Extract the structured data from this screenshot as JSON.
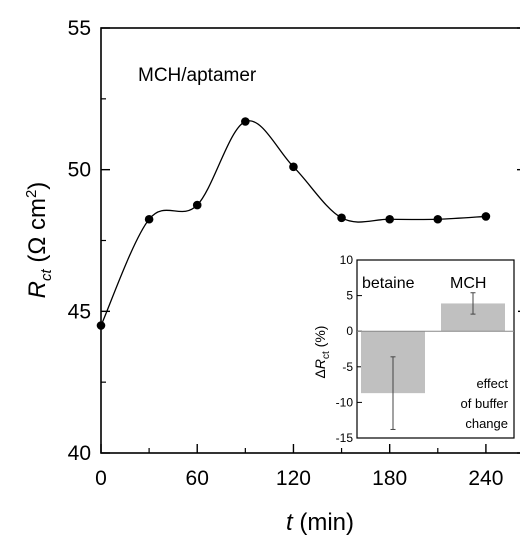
{
  "chart_data": [
    {
      "type": "line",
      "annotation": "MCH/aptamer",
      "xlabel": {
        "italic": "t",
        "rest": " (min)"
      },
      "ylabel": {
        "italic": "R",
        "sub": "ct",
        "rest": " (Ω cm",
        "sup": "2",
        "close": ")"
      },
      "xlim": [
        0,
        265
      ],
      "ylim": [
        40,
        55
      ],
      "xticks": [
        0,
        60,
        120,
        180,
        240
      ],
      "yticks": [
        40,
        45,
        50,
        55
      ],
      "x": [
        0,
        30,
        60,
        90,
        120,
        150,
        180,
        210,
        240
      ],
      "y": [
        44.5,
        48.25,
        48.75,
        51.7,
        50.1,
        48.3,
        48.25,
        48.25,
        48.35
      ],
      "grid": false,
      "marker_color": "#000000",
      "line_color": "#000000"
    },
    {
      "type": "bar",
      "categories": [
        "betaine",
        "MCH"
      ],
      "values": [
        -8.7,
        3.9
      ],
      "errors": [
        5.1,
        1.5
      ],
      "ylim": [
        -15,
        10
      ],
      "yticks": [
        10,
        5,
        0,
        -5,
        -10,
        -15
      ],
      "ylabel": {
        "prefix": "Δ",
        "italic": "R",
        "sub": "ct",
        "rest": " (%)"
      },
      "note": [
        "effect",
        "of buffer",
        "change"
      ],
      "bar_color": "#c0c0c0",
      "grid": false
    }
  ]
}
